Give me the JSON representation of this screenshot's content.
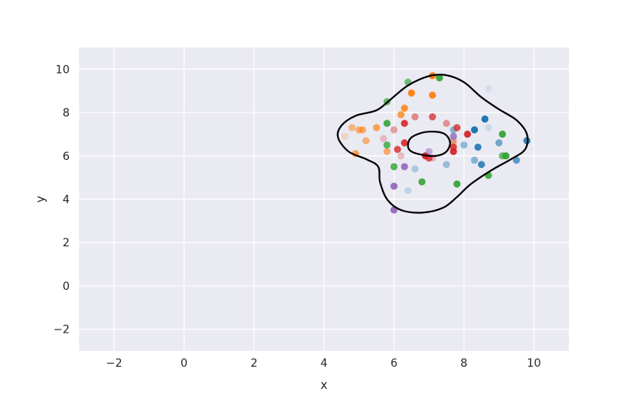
{
  "chart_data": {
    "type": "scatter",
    "xlabel": "x",
    "ylabel": "y",
    "xlim": [
      -3,
      11
    ],
    "ylim": [
      -3,
      11
    ],
    "xticks": [
      -2,
      0,
      2,
      4,
      6,
      8,
      10
    ],
    "yticks": [
      -2,
      0,
      2,
      4,
      6,
      8,
      10
    ],
    "grid": true,
    "background": "#eaeaf2",
    "grid_color": "#ffffff",
    "contour_color": "#000000",
    "series": [
      {
        "color": "#1f77b4",
        "points": [
          [
            8.6,
            7.7,
            1.0
          ],
          [
            8.3,
            7.2,
            1.0
          ],
          [
            8.4,
            6.4,
            0.9
          ],
          [
            8.3,
            5.8,
            0.5
          ],
          [
            8.5,
            5.6,
            0.85
          ],
          [
            9.5,
            5.8,
            0.7
          ],
          [
            9.8,
            6.7,
            0.9
          ],
          [
            9.0,
            6.6,
            0.6
          ],
          [
            8.0,
            6.5,
            0.45
          ],
          [
            7.7,
            7.2,
            0.5
          ],
          [
            7.5,
            5.6,
            0.4
          ],
          [
            6.6,
            5.4,
            0.3
          ],
          [
            6.4,
            4.4,
            0.2
          ],
          [
            8.7,
            9.1,
            0.1
          ],
          [
            8.7,
            7.3,
            0.15
          ]
        ]
      },
      {
        "color": "#ff7f0e",
        "points": [
          [
            7.1,
            9.7,
            1.0
          ],
          [
            6.5,
            8.9,
            0.95
          ],
          [
            7.1,
            8.8,
            0.95
          ],
          [
            6.3,
            8.2,
            0.85
          ],
          [
            6.2,
            7.9,
            0.75
          ],
          [
            5.5,
            7.3,
            0.7
          ],
          [
            5.1,
            7.2,
            0.65
          ],
          [
            5.0,
            7.2,
            0.6
          ],
          [
            4.8,
            7.3,
            0.5
          ],
          [
            5.2,
            6.7,
            0.55
          ],
          [
            4.9,
            6.1,
            0.7
          ],
          [
            5.8,
            6.2,
            0.6
          ],
          [
            4.6,
            6.9,
            0.2
          ],
          [
            7.7,
            6.6,
            0.35
          ]
        ]
      },
      {
        "color": "#2ca02c",
        "points": [
          [
            7.3,
            9.6,
            0.9
          ],
          [
            6.4,
            9.4,
            0.65
          ],
          [
            5.8,
            8.5,
            0.7
          ],
          [
            5.8,
            7.5,
            0.85
          ],
          [
            5.8,
            6.5,
            0.75
          ],
          [
            6.0,
            5.5,
            0.8
          ],
          [
            6.8,
            4.8,
            0.85
          ],
          [
            7.8,
            4.7,
            0.9
          ],
          [
            8.7,
            5.1,
            0.85
          ],
          [
            9.2,
            6.0,
            0.9
          ],
          [
            9.1,
            6.0,
            0.7
          ],
          [
            9.1,
            7.0,
            0.9
          ]
        ]
      },
      {
        "color": "#d62728",
        "points": [
          [
            7.8,
            7.3,
            0.8
          ],
          [
            6.3,
            7.5,
            0.9
          ],
          [
            7.1,
            7.8,
            0.75
          ],
          [
            6.3,
            6.6,
            0.9
          ],
          [
            6.1,
            6.3,
            0.8
          ],
          [
            6.9,
            6.0,
            1.0
          ],
          [
            7.0,
            5.9,
            0.8
          ],
          [
            7.7,
            6.2,
            0.95
          ],
          [
            7.7,
            6.4,
            0.85
          ],
          [
            8.1,
            7.0,
            0.95
          ],
          [
            6.6,
            7.8,
            0.5
          ],
          [
            7.5,
            7.5,
            0.45
          ],
          [
            6.0,
            7.2,
            0.4
          ],
          [
            7.7,
            6.7,
            0.3
          ],
          [
            6.2,
            6.0,
            0.25
          ],
          [
            7.1,
            5.9,
            0.3
          ],
          [
            5.7,
            6.8,
            0.25
          ]
        ]
      },
      {
        "color": "#9467bd",
        "points": [
          [
            6.0,
            4.6,
            0.95
          ],
          [
            6.0,
            3.5,
            0.95
          ],
          [
            6.3,
            5.5,
            0.9
          ],
          [
            7.7,
            6.9,
            0.8
          ],
          [
            7.0,
            6.2,
            0.5
          ]
        ]
      }
    ],
    "contours": [
      {
        "level": "outer",
        "path": [
          [
            4.4,
            6.85
          ],
          [
            4.5,
            7.4
          ],
          [
            4.9,
            7.85
          ],
          [
            5.5,
            8.1
          ],
          [
            5.9,
            8.6
          ],
          [
            6.4,
            9.25
          ],
          [
            7.0,
            9.68
          ],
          [
            7.5,
            9.72
          ],
          [
            8.0,
            9.4
          ],
          [
            8.5,
            8.7
          ],
          [
            9.0,
            8.15
          ],
          [
            9.5,
            7.65
          ],
          [
            9.8,
            7.0
          ],
          [
            9.75,
            6.3
          ],
          [
            9.35,
            5.85
          ],
          [
            8.8,
            5.35
          ],
          [
            8.2,
            4.7
          ],
          [
            7.8,
            4.1
          ],
          [
            7.4,
            3.6
          ],
          [
            6.8,
            3.38
          ],
          [
            6.2,
            3.5
          ],
          [
            5.8,
            4.0
          ],
          [
            5.6,
            4.8
          ],
          [
            5.55,
            5.5
          ],
          [
            5.2,
            5.85
          ],
          [
            4.7,
            6.2
          ],
          [
            4.4,
            6.85
          ]
        ]
      },
      {
        "level": "inner",
        "path": [
          [
            6.4,
            6.45
          ],
          [
            6.5,
            6.85
          ],
          [
            6.9,
            7.1
          ],
          [
            7.4,
            7.05
          ],
          [
            7.6,
            6.65
          ],
          [
            7.5,
            6.2
          ],
          [
            7.2,
            6.0
          ],
          [
            6.8,
            6.05
          ],
          [
            6.5,
            6.2
          ],
          [
            6.4,
            6.45
          ]
        ]
      }
    ]
  }
}
